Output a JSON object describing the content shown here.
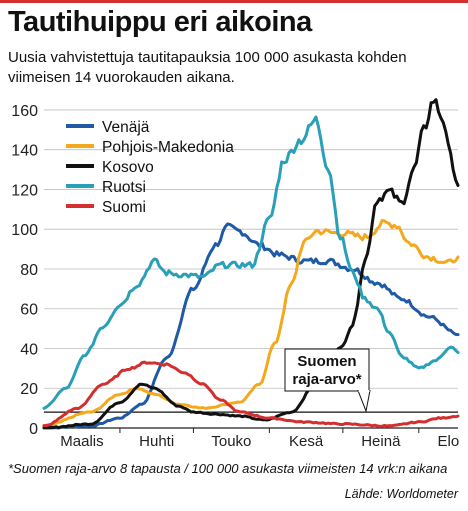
{
  "title": "Tautihuippu eri aikoina",
  "subtitle": "Uusia vahvistettuja tautitapauksia 100 000 asukasta kohden viimeisen 14 vuorokauden aikana.",
  "footnote": "*Suomen raja-arvo 8 tapausta / 100 000 asukasta viimeisten 14 vrk:n aikana",
  "source": "Lähde: Worldometer",
  "chart_data": {
    "type": "line",
    "title": "Tautihuippu eri aikoina",
    "subtitle": "Uusia vahvistettuja tautitapauksia 100 000 asukasta kohden viimeisen 14 vuorokauden aikana.",
    "xlabel": "",
    "ylabel": "",
    "x_ticks": [
      "Maalis",
      "Huhti",
      "Touko",
      "Kesä",
      "Heinä",
      "Elo"
    ],
    "x_range": [
      "2020-03-01",
      "2020-08-17"
    ],
    "ylim": [
      0,
      165
    ],
    "y_ticks": [
      0,
      20,
      40,
      60,
      80,
      100,
      120,
      140,
      160
    ],
    "grid": "horizontal",
    "legend_position": "top-left",
    "threshold": {
      "label": "Suomen raja-arvo*",
      "value": 8
    },
    "series": [
      {
        "name": "Venäjä",
        "color": "#1f5aa6",
        "points": [
          [
            "2020-03-01",
            0
          ],
          [
            "2020-03-20",
            1
          ],
          [
            "2020-04-01",
            5
          ],
          [
            "2020-04-10",
            12
          ],
          [
            "2020-04-20",
            35
          ],
          [
            "2020-05-01",
            70
          ],
          [
            "2020-05-10",
            92
          ],
          [
            "2020-05-15",
            101
          ],
          [
            "2020-05-20",
            99
          ],
          [
            "2020-05-28",
            92
          ],
          [
            "2020-06-05",
            87
          ],
          [
            "2020-06-15",
            84
          ],
          [
            "2020-06-25",
            84
          ],
          [
            "2020-07-05",
            80
          ],
          [
            "2020-07-15",
            73
          ],
          [
            "2020-07-25",
            65
          ],
          [
            "2020-08-05",
            56
          ],
          [
            "2020-08-17",
            47
          ]
        ]
      },
      {
        "name": "Pohjois-Makedonia",
        "color": "#f4a81d",
        "points": [
          [
            "2020-03-01",
            1
          ],
          [
            "2020-03-20",
            8
          ],
          [
            "2020-04-01",
            17
          ],
          [
            "2020-04-08",
            20
          ],
          [
            "2020-04-15",
            17
          ],
          [
            "2020-04-25",
            12
          ],
          [
            "2020-05-05",
            10
          ],
          [
            "2020-05-20",
            13
          ],
          [
            "2020-05-28",
            22
          ],
          [
            "2020-06-03",
            42
          ],
          [
            "2020-06-10",
            72
          ],
          [
            "2020-06-15",
            93
          ],
          [
            "2020-06-20",
            99
          ],
          [
            "2020-06-30",
            98
          ],
          [
            "2020-07-10",
            96
          ],
          [
            "2020-07-18",
            103
          ],
          [
            "2020-07-23",
            102
          ],
          [
            "2020-07-28",
            93
          ],
          [
            "2020-08-05",
            86
          ],
          [
            "2020-08-13",
            83
          ],
          [
            "2020-08-17",
            86
          ]
        ]
      },
      {
        "name": "Kosovo",
        "color": "#111111",
        "points": [
          [
            "2020-03-01",
            0
          ],
          [
            "2020-03-20",
            2
          ],
          [
            "2020-04-01",
            13
          ],
          [
            "2020-04-10",
            22
          ],
          [
            "2020-04-15",
            20
          ],
          [
            "2020-04-25",
            11
          ],
          [
            "2020-05-01",
            8
          ],
          [
            "2020-05-10",
            7
          ],
          [
            "2020-05-20",
            6
          ],
          [
            "2020-05-30",
            4
          ],
          [
            "2020-06-10",
            8
          ],
          [
            "2020-06-20",
            22
          ],
          [
            "2020-06-30",
            40
          ],
          [
            "2020-07-05",
            52
          ],
          [
            "2020-07-10",
            84
          ],
          [
            "2020-07-15",
            115
          ],
          [
            "2020-07-20",
            119
          ],
          [
            "2020-07-25",
            113
          ],
          [
            "2020-07-30",
            130
          ],
          [
            "2020-08-03",
            150
          ],
          [
            "2020-08-07",
            165
          ],
          [
            "2020-08-11",
            155
          ],
          [
            "2020-08-14",
            136
          ],
          [
            "2020-08-17",
            122
          ]
        ]
      },
      {
        "name": "Ruotsi",
        "color": "#2a9fb8",
        "points": [
          [
            "2020-03-01",
            10
          ],
          [
            "2020-03-10",
            20
          ],
          [
            "2020-03-18",
            37
          ],
          [
            "2020-03-25",
            51
          ],
          [
            "2020-04-01",
            62
          ],
          [
            "2020-04-08",
            72
          ],
          [
            "2020-04-15",
            84
          ],
          [
            "2020-04-20",
            78
          ],
          [
            "2020-04-27",
            77
          ],
          [
            "2020-05-05",
            76
          ],
          [
            "2020-05-12",
            82
          ],
          [
            "2020-05-18",
            82
          ],
          [
            "2020-05-25",
            82
          ],
          [
            "2020-06-01",
            105
          ],
          [
            "2020-06-07",
            135
          ],
          [
            "2020-06-14",
            145
          ],
          [
            "2020-06-20",
            155
          ],
          [
            "2020-06-25",
            131
          ],
          [
            "2020-06-30",
            96
          ],
          [
            "2020-07-05",
            78
          ],
          [
            "2020-07-10",
            65
          ],
          [
            "2020-07-15",
            60
          ],
          [
            "2020-07-20",
            48
          ],
          [
            "2020-07-25",
            36
          ],
          [
            "2020-08-01",
            30
          ],
          [
            "2020-08-08",
            34
          ],
          [
            "2020-08-14",
            41
          ],
          [
            "2020-08-17",
            38
          ]
        ]
      },
      {
        "name": "Suomi",
        "color": "#d32f2f",
        "points": [
          [
            "2020-03-01",
            1
          ],
          [
            "2020-03-15",
            10
          ],
          [
            "2020-03-25",
            22
          ],
          [
            "2020-04-05",
            30
          ],
          [
            "2020-04-12",
            33
          ],
          [
            "2020-04-20",
            32
          ],
          [
            "2020-04-27",
            28
          ],
          [
            "2020-05-05",
            22
          ],
          [
            "2020-05-12",
            14
          ],
          [
            "2020-05-20",
            8
          ],
          [
            "2020-06-01",
            5
          ],
          [
            "2020-06-15",
            3
          ],
          [
            "2020-07-01",
            2
          ],
          [
            "2020-07-20",
            1
          ],
          [
            "2020-08-01",
            3
          ],
          [
            "2020-08-10",
            5
          ],
          [
            "2020-08-17",
            6
          ]
        ]
      }
    ]
  }
}
